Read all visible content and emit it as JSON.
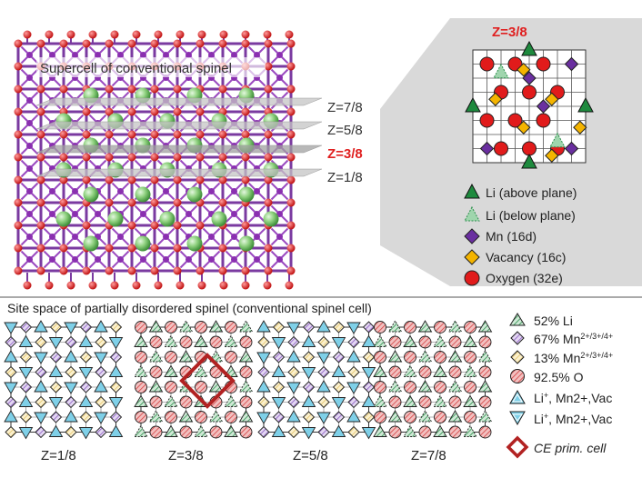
{
  "top": {
    "supercell_title": "Supercell of conventional spinel",
    "layer_labels": [
      "Z=7/8",
      "Z=5/8",
      "Z=3/8",
      "Z=1/8"
    ],
    "highlight_label": "Z=3/8",
    "highlight_color": "#e02020",
    "inset_title": "Z=3/8",
    "legend": [
      {
        "label": "Li (above plane)",
        "shape": "triangle-up",
        "color": "#1e8a3e"
      },
      {
        "label": "Li (below plane)",
        "shape": "triangle-up-dashed",
        "color": "#9fd5ad"
      },
      {
        "label": "Mn (16d)",
        "shape": "diamond",
        "color": "#6a2fa0"
      },
      {
        "label": "Vacancy (16c)",
        "shape": "diamond",
        "color": "#f4b400"
      },
      {
        "label": "Oxygen (32e)",
        "shape": "circle",
        "color": "#e11b1b"
      }
    ]
  },
  "bottom": {
    "title": "Site space of partially disordered spinel (conventional spinel cell)",
    "panels": [
      "Z=1/8",
      "Z=3/8",
      "Z=5/8",
      "Z=7/8"
    ],
    "legend": [
      {
        "label": "52% Li",
        "sup": "",
        "label_after": "",
        "shape": "triangle-hatched",
        "color": "#2f8f4e"
      },
      {
        "label": "67% Mn",
        "sup": "2+/3+/4+",
        "label_after": "",
        "shape": "diamond-hatched",
        "color": "#8a5cc2"
      },
      {
        "label": "13% Mn",
        "sup": "2+/3+/4+",
        "label_after": "",
        "shape": "diamond-hatched",
        "color": "#f0d78a"
      },
      {
        "label": "92.5% O",
        "sup": "",
        "label_after": "",
        "shape": "circle-hatched",
        "color": "#e06060"
      },
      {
        "label": "Li",
        "sup": "+",
        "label_after": ", Mn2+,Vac",
        "shape": "triangle-up-cyan",
        "color": "#7fd0e8"
      },
      {
        "label": "Li",
        "sup": "+",
        "label_after": ", Mn2+,Vac",
        "shape": "triangle-down-cyan",
        "color": "#7fd0e8"
      }
    ],
    "ce_label": "CE prim. cell",
    "ce_color": "#b22222"
  }
}
